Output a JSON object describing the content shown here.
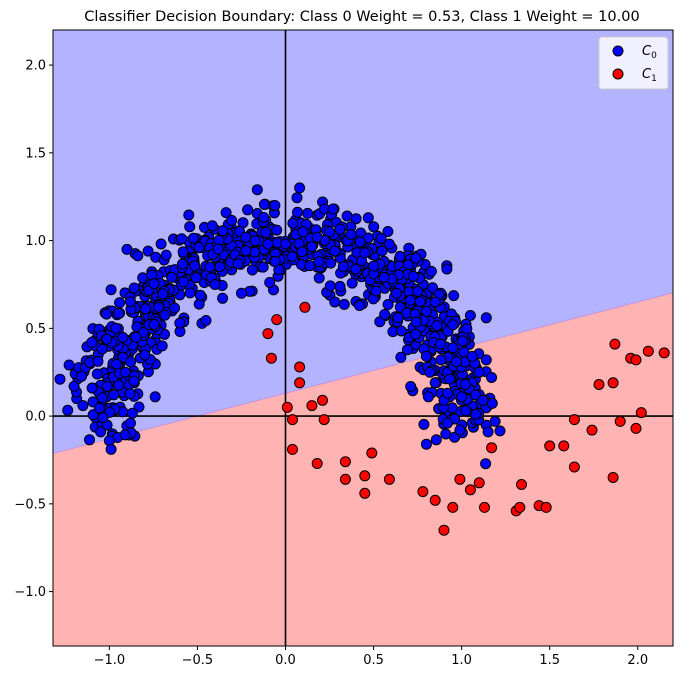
{
  "chart_data": {
    "type": "scatter",
    "title": "Classifier Decision Boundary: Class 0 Weight = 0.53, Class 1 Weight = 10.00",
    "xlabel": "",
    "ylabel": "",
    "xlim": [
      -1.32,
      2.2
    ],
    "ylim": [
      -1.31,
      2.2
    ],
    "xticks": [
      -1.0,
      -0.5,
      0.0,
      0.5,
      1.0,
      1.5,
      2.0
    ],
    "xtick_labels": [
      "−1.0",
      "−0.5",
      "0.0",
      "0.5",
      "1.0",
      "1.5",
      "2.0"
    ],
    "yticks": [
      -1.0,
      -0.5,
      0.0,
      0.5,
      1.0,
      1.5,
      2.0
    ],
    "ytick_labels": [
      "−1.0",
      "−0.5",
      "0.0",
      "0.5",
      "1.0",
      "1.5",
      "2.0"
    ],
    "grid": false,
    "legend_position": "top-right",
    "decision_boundary": {
      "slope": 0.26,
      "intercept": 0.13,
      "above_region": "class 0",
      "below_region": "class 1",
      "above_color": "#b3b3ff",
      "below_color": "#ffb3b3"
    },
    "series": [
      {
        "name": "C0",
        "label_base": "C",
        "label_sub": "0",
        "color": "#0000ff",
        "generator": {
          "center": [
            0,
            0
          ],
          "radius": 1.0,
          "angle_range_deg": [
            0,
            180
          ],
          "noise": 0.1,
          "count": 940
        },
        "points": [
          [
            -1.28,
            0.21
          ],
          [
            -1.2,
            0.17
          ],
          [
            -1.15,
            0.06
          ],
          [
            -1.1,
            0.42
          ],
          [
            -1.05,
            -0.09
          ],
          [
            -1.0,
            -0.14
          ],
          [
            -0.99,
            -0.19
          ],
          [
            -0.91,
            0.25
          ],
          [
            -0.88,
            -0.04
          ],
          [
            -0.86,
            0.2
          ],
          [
            -0.85,
            0.45
          ],
          [
            -0.74,
            0.11
          ],
          [
            -0.73,
            0.38
          ],
          [
            -0.72,
            0.62
          ],
          [
            -0.7,
            0.4
          ],
          [
            -0.6,
            0.53
          ],
          [
            -0.43,
            0.85
          ],
          [
            -0.25,
            0.7
          ],
          [
            -0.16,
            1.29
          ],
          [
            -0.1,
            0.98
          ],
          [
            -0.05,
            1.06
          ],
          [
            0.0,
            0.98
          ],
          [
            0.08,
            1.3
          ],
          [
            0.1,
            1.05
          ],
          [
            0.18,
            1.02
          ],
          [
            0.28,
            0.94
          ],
          [
            0.27,
            1.18
          ],
          [
            0.35,
            1.14
          ],
          [
            0.28,
            0.65
          ],
          [
            0.42,
            0.63
          ],
          [
            0.47,
            1.13
          ],
          [
            0.56,
            0.79
          ],
          [
            0.59,
            0.98
          ],
          [
            0.64,
            0.56
          ],
          [
            0.63,
            0.7
          ],
          [
            0.71,
            0.66
          ],
          [
            0.74,
            0.9
          ],
          [
            0.75,
            0.71
          ],
          [
            0.8,
            0.34
          ],
          [
            0.82,
            0.25
          ],
          [
            0.85,
            0.19
          ],
          [
            0.85,
            0.65
          ],
          [
            0.88,
            0.41
          ],
          [
            0.9,
            0.09
          ],
          [
            0.92,
            0.13
          ],
          [
            0.92,
            -0.04
          ],
          [
            0.95,
            0.52
          ],
          [
            0.95,
            0.39
          ],
          [
            0.97,
            0.31
          ],
          [
            1.0,
            0.11
          ],
          [
            1.02,
            0.18
          ],
          [
            1.06,
            0.34
          ],
          [
            1.08,
            0.12
          ],
          [
            1.08,
            0.01
          ],
          [
            1.1,
            0.25
          ],
          [
            1.12,
            0.09
          ],
          [
            1.15,
            -0.09
          ],
          [
            1.19,
            -0.03
          ],
          [
            1.17,
            0.22
          ],
          [
            0.96,
            -0.12
          ],
          [
            0.99,
            -0.08
          ],
          [
            0.8,
            -0.16
          ],
          [
            1.14,
            0.56
          ],
          [
            1.14,
            0.32
          ],
          [
            -0.99,
            0.72
          ],
          [
            -0.9,
            0.95
          ],
          [
            -0.78,
            0.94
          ],
          [
            -0.59,
            1.01
          ],
          [
            -0.4,
            0.75
          ],
          [
            -0.06,
            1.2
          ],
          [
            0.19,
            0.88
          ],
          [
            0.25,
            1.05
          ],
          [
            0.45,
            0.93
          ],
          [
            0.65,
            0.91
          ]
        ]
      },
      {
        "name": "C1",
        "label_base": "C",
        "label_sub": "1",
        "color": "#ff0000",
        "points": [
          [
            -0.1,
            0.47
          ],
          [
            -0.05,
            0.55
          ],
          [
            -0.08,
            0.33
          ],
          [
            0.11,
            0.62
          ],
          [
            0.08,
            0.28
          ],
          [
            0.08,
            0.19
          ],
          [
            0.01,
            0.05
          ],
          [
            0.04,
            -0.02
          ],
          [
            0.15,
            0.06
          ],
          [
            0.21,
            0.09
          ],
          [
            0.22,
            -0.02
          ],
          [
            0.04,
            -0.19
          ],
          [
            0.18,
            -0.27
          ],
          [
            0.34,
            -0.26
          ],
          [
            0.34,
            -0.36
          ],
          [
            0.45,
            -0.34
          ],
          [
            0.45,
            -0.44
          ],
          [
            0.49,
            -0.21
          ],
          [
            0.59,
            -0.36
          ],
          [
            0.78,
            -0.43
          ],
          [
            0.85,
            -0.48
          ],
          [
            0.9,
            -0.65
          ],
          [
            0.95,
            -0.52
          ],
          [
            0.99,
            -0.36
          ],
          [
            1.05,
            -0.42
          ],
          [
            1.1,
            -0.38
          ],
          [
            1.13,
            -0.52
          ],
          [
            1.17,
            -0.18
          ],
          [
            1.31,
            -0.54
          ],
          [
            1.33,
            -0.52
          ],
          [
            1.34,
            -0.39
          ],
          [
            1.44,
            -0.51
          ],
          [
            1.48,
            -0.52
          ],
          [
            1.5,
            -0.17
          ],
          [
            1.58,
            -0.17
          ],
          [
            1.64,
            -0.29
          ],
          [
            1.64,
            -0.02
          ],
          [
            1.74,
            -0.08
          ],
          [
            1.78,
            0.18
          ],
          [
            1.86,
            0.19
          ],
          [
            1.87,
            0.41
          ],
          [
            1.9,
            -0.03
          ],
          [
            1.96,
            0.33
          ],
          [
            1.99,
            0.32
          ],
          [
            1.99,
            -0.07
          ],
          [
            2.02,
            0.02
          ],
          [
            2.06,
            0.37
          ],
          [
            2.15,
            0.36
          ],
          [
            1.86,
            -0.35
          ]
        ]
      }
    ]
  }
}
